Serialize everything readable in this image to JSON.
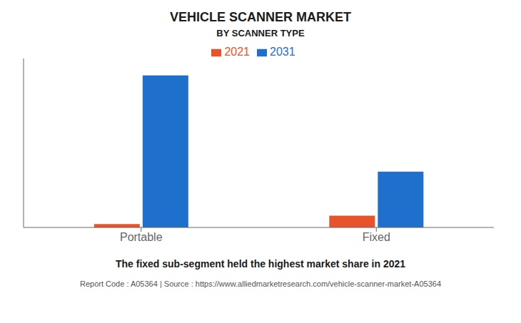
{
  "chart_data": {
    "type": "bar",
    "title": "VEHICLE SCANNER MARKET",
    "subtitle": "BY SCANNER TYPE",
    "categories": [
      "Portable",
      "Fixed"
    ],
    "series": [
      {
        "name": "2021",
        "color": "#e8532a",
        "values": [
          0.02,
          0.07
        ]
      },
      {
        "name": "2031",
        "color": "#1f6fcd",
        "values": [
          0.9,
          0.33
        ]
      }
    ],
    "ylim": [
      0,
      1.0
    ],
    "yticks": [],
    "grid": false,
    "legend": "top",
    "tick_labels": "x",
    "annotation": "The fixed sub-segment held the highest market share in 2021",
    "footer": "Report Code : A05364  |  Source : https://www.alliedmarketresearch.com/vehicle-scanner-market-A05364"
  }
}
